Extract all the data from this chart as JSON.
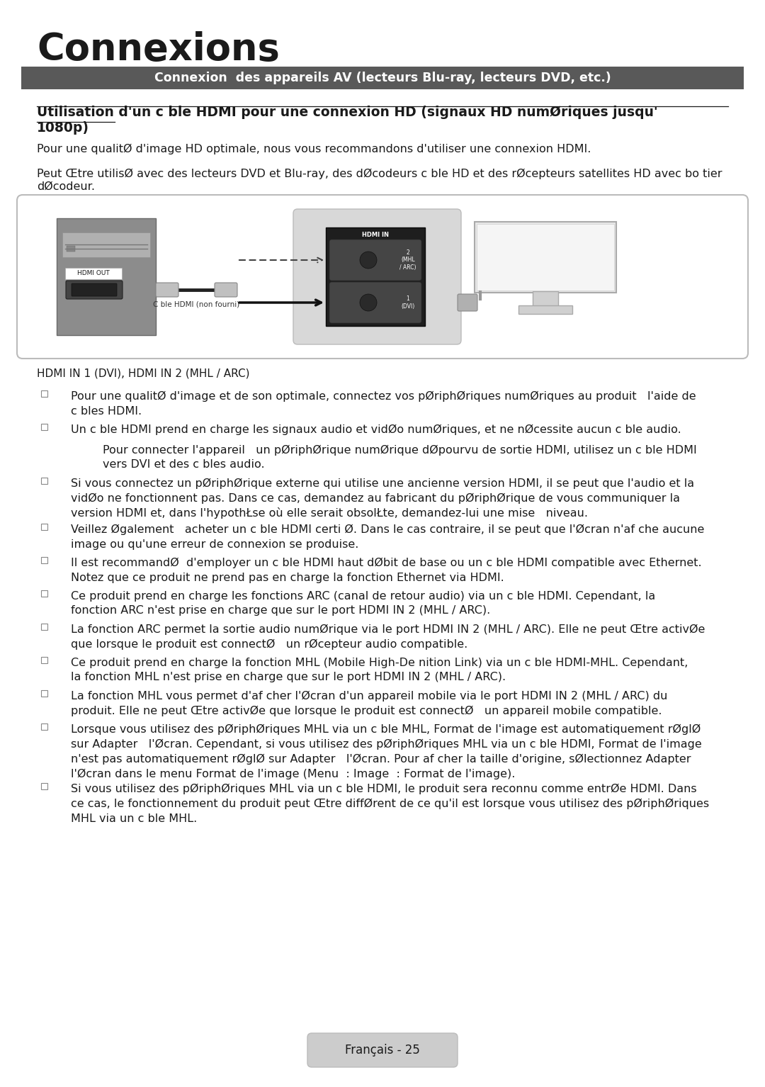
{
  "title": "Connexions",
  "section_bar_text": "Connexion  des appareils AV (lecteurs Blu-ray, lecteurs DVD, etc.)",
  "section_bar_color": "#595959",
  "section_bar_text_color": "#ffffff",
  "subsection_title_line1": "Utilisation d'un c ble HDMI pour une connexion HD (signaux HD numØriques jusqu'",
  "subsection_title_line2": "1080p)",
  "para1": "Pour une qualitØ d'image HD optimale, nous vous recommandons d'utiliser une connexion HDMI.",
  "para2_line1": "Peut Œtre utilisØ avec des lecteurs DVD et Blu-ray, des dØcodeurs c ble HD et des rØcepteurs satellites HD avec bo tier",
  "para2_line2": "dØcodeur.",
  "note_label": "HDMI IN 1 (DVI), HDMI IN 2 (MHL / ARC)",
  "bullet_marker": "⬜",
  "bullets": [
    {
      "text": "Pour une qualitØ d'image et de son optimale, connectez vos pØriphØriques numØriques au produit   l'aide de\nc bles HDMI.",
      "lines": 2,
      "sub": null
    },
    {
      "text": "Un c ble HDMI prend en charge les signaux audio et vidØo numØriques, et ne nØcessite aucun c ble audio.",
      "lines": 1,
      "sub": "Pour connecter l'appareil   un pØriphØrique numØrique dØpourvu de sortie HDMI, utilisez un c ble HDMI\nvers DVI et des c bles audio."
    },
    {
      "text": "Si vous connectez un pØriphØrique externe qui utilise une ancienne version HDMI, il se peut que l'audio et la\nvidØo ne fonctionnent pas. Dans ce cas, demandez au fabricant du pØriphØrique de vous communiquer la\nversion HDMI et, dans l'hypothŁse où elle serait obsolŁte, demandez-lui une mise   niveau.",
      "lines": 3,
      "sub": null
    },
    {
      "text": "Veillez Øgalement   acheter un c ble HDMI certi Ø. Dans le cas contraire, il se peut que l'Øcran n'af che aucune\nimage ou qu'une erreur de connexion se produise.",
      "lines": 2,
      "sub": null
    },
    {
      "text": "Il est recommandØ  d'employer un c ble HDMI haut dØbit de base ou un c ble HDMI compatible avec Ethernet.\nNotez que ce produit ne prend pas en charge la fonction Ethernet via HDMI.",
      "lines": 2,
      "sub": null
    },
    {
      "text": "Ce produit prend en charge les fonctions ARC (canal de retour audio) via un c ble HDMI. Cependant, la\nfonction ARC n'est prise en charge que sur le port HDMI IN 2 (MHL / ARC).",
      "lines": 2,
      "sub": null
    },
    {
      "text": "La fonction ARC permet la sortie audio numØrique via le port HDMI IN 2 (MHL / ARC). Elle ne peut Œtre activØe\nque lorsque le produit est connectØ   un rØcepteur audio compatible.",
      "lines": 2,
      "sub": null
    },
    {
      "text": "Ce produit prend en charge la fonction MHL (Mobile High-De nition Link) via un c ble HDMI-MHL. Cependant,\nla fonction MHL n'est prise en charge que sur le port HDMI IN 2 (MHL / ARC).",
      "lines": 2,
      "sub": null
    },
    {
      "text": "La fonction MHL vous permet d'af cher l'Øcran d'un appareil mobile via le port HDMI IN 2 (MHL / ARC) du\nproduit. Elle ne peut Œtre activØe que lorsque le produit est connectØ   un appareil mobile compatible.",
      "lines": 2,
      "sub": null
    },
    {
      "text": "Lorsque vous utilisez des pØriphØriques MHL via un c ble MHL, Format de l'image est automatiquement rØglØ\nsur Adapter   l'Øcran. Cependant, si vous utilisez des pØriphØriques MHL via un c ble HDMI, Format de l'image\nn'est pas automatiquement rØglØ sur Adapter   l'Øcran. Pour af cher la taille d'origine, sØlectionnez Adapter\nl'Øcran dans le menu Format de l'image (Menu  : Image  : Format de l'image).",
      "lines": 4,
      "sub": null
    },
    {
      "text": "Si vous utilisez des pØriphØriques MHL via un c ble HDMI, le produit sera reconnu comme entrØe HDMI. Dans\nce cas, le fonctionnement du produit peut Œtre diffØrent de ce qu'il est lorsque vous utilisez des pØriphØriques\nMHL via un c ble MHL.",
      "lines": 3,
      "sub": null
    }
  ],
  "footer_text": "Français - 25",
  "bg_color": "#ffffff",
  "text_color": "#1a1a1a",
  "orange_color": "#d4752a",
  "section_bar_bg": "#595959"
}
